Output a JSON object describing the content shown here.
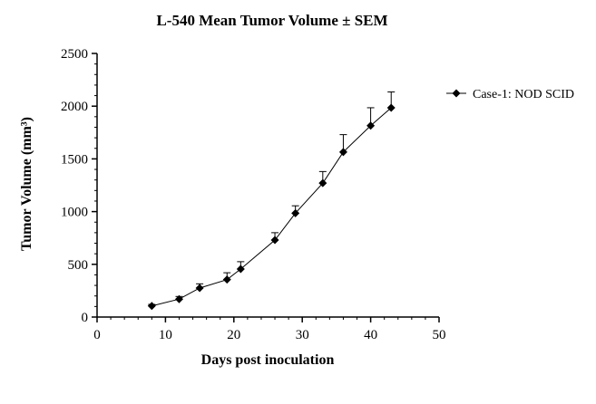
{
  "chart_data": {
    "type": "line",
    "title": "L-540 Mean Tumor Volume ± SEM",
    "xlabel": "Days post inoculation",
    "ylabel": "Tumor Volume (mm³)",
    "xlim": [
      0,
      50
    ],
    "ylim": [
      0,
      2500
    ],
    "x_ticks": [
      0,
      10,
      20,
      30,
      40,
      50
    ],
    "y_ticks": [
      0,
      500,
      1000,
      1500,
      2000,
      2500
    ],
    "x_minor_step": 2,
    "y_minor_step": 100,
    "grid": false,
    "legend_position": "right",
    "series": [
      {
        "name": "Case-1: NOD SCID",
        "marker": "diamond",
        "color": "#000000",
        "x": [
          8,
          12,
          15,
          19,
          21,
          26,
          29,
          33,
          36,
          40,
          43
        ],
        "y": [
          105,
          170,
          275,
          355,
          455,
          730,
          985,
          1270,
          1565,
          1815,
          1985
        ],
        "sem": [
          15,
          25,
          40,
          65,
          70,
          70,
          70,
          110,
          165,
          170,
          150
        ]
      }
    ]
  }
}
